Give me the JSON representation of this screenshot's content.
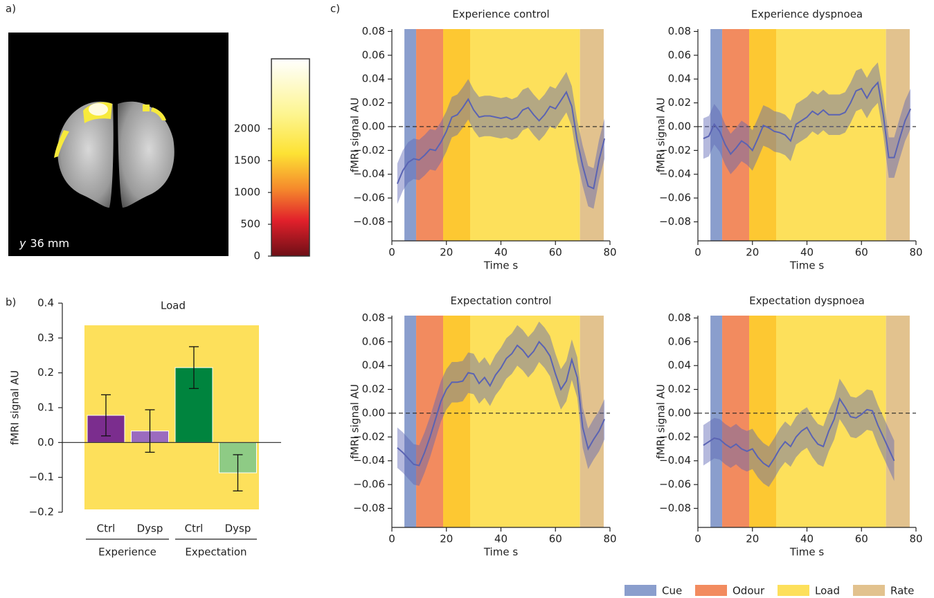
{
  "panel_labels": [
    "a)",
    "b)",
    "c)"
  ],
  "image": {
    "caption_var": "y",
    "caption": "36 mm",
    "colorbar": {
      "ylim": [
        0,
        3100
      ],
      "yticks": [
        0,
        500,
        1000,
        1500,
        2000
      ]
    }
  },
  "phases": {
    "regions": [
      {
        "range": [
          4.6,
          8.9
        ],
        "color": "#8a9ecd"
      },
      {
        "range": [
          8.9,
          18.8
        ],
        "color": "#f28b5f"
      },
      {
        "range": [
          18.8,
          28.7
        ],
        "color": "#fdc832"
      },
      {
        "range": [
          28.7,
          69
        ],
        "color": "#fde05b"
      },
      {
        "range": [
          69,
          77.7
        ],
        "color": "#e2c28e"
      }
    ],
    "legend": [
      {
        "name": "Cue",
        "color": "#8a9ecd"
      },
      {
        "name": "Odour",
        "color": "#f28b5f"
      },
      {
        "name": "Load",
        "color": "#fde05b"
      },
      {
        "name": "Rate",
        "color": "#e2c28e"
      }
    ]
  },
  "chart_data": [
    {
      "type": "bar",
      "title": "Load",
      "y_label": "fMRI signal AU",
      "categories": [
        "Ctrl",
        "Dysp",
        "Ctrl",
        "Dysp"
      ],
      "groups": [
        "Experience",
        "Expectation"
      ],
      "values": [
        0.078,
        0.033,
        0.215,
        -0.087
      ],
      "error": [
        0.059,
        0.061,
        0.06,
        0.052
      ],
      "colors": [
        "#7b2d8e",
        "#9b6bbf",
        "#00843e",
        "#8ecb85"
      ],
      "ylim": [
        -0.2,
        0.4
      ],
      "yticks": [
        0.4,
        0.3,
        0.2,
        0.1,
        {
          "value": 0,
          "label": "0.0"
        },
        {
          "value": -0.1,
          "label": "−0.1"
        },
        {
          "value": -0.2,
          "label": "−0.2"
        }
      ],
      "hline": 0
    },
    {
      "type": "line",
      "title": "Experience control",
      "x_label": "Time s",
      "y_label": "fMRI signal AU",
      "x": [
        2,
        4,
        6,
        8,
        10,
        12,
        14,
        16,
        18,
        20,
        22,
        24,
        26,
        28,
        30,
        32,
        34,
        36,
        38,
        40,
        42,
        44,
        46,
        48,
        50,
        52,
        54,
        56,
        58,
        60,
        62,
        64,
        66,
        68,
        70,
        72,
        74,
        76,
        78
      ],
      "series": [
        {
          "color": "#5a63b3",
          "error": 0.017,
          "values": [
            -0.048,
            -0.037,
            -0.03,
            -0.027,
            -0.028,
            -0.024,
            -0.019,
            -0.02,
            -0.013,
            -0.004,
            0.008,
            0.01,
            0.016,
            0.023,
            0.014,
            0.008,
            0.009,
            0.009,
            0.008,
            0.007,
            0.008,
            0.006,
            0.008,
            0.014,
            0.016,
            0.01,
            0.005,
            0.01,
            0.017,
            0.015,
            0.022,
            0.029,
            0.017,
            -0.012,
            -0.033,
            -0.05,
            -0.052,
            -0.028,
            -0.01
          ]
        }
      ],
      "xlim": [
        0,
        80
      ],
      "xticks": [
        0,
        20,
        40,
        60,
        80
      ],
      "ylim": [
        -0.096,
        0.082
      ],
      "yticks": [
        0.08,
        0.06,
        0.04,
        0.02,
        {
          "value": 0,
          "label": "0.00"
        },
        {
          "value": -0.02,
          "label": "−0.02"
        },
        {
          "value": -0.04,
          "label": "−0.04"
        },
        {
          "value": -0.06,
          "label": "−0.06"
        },
        {
          "value": -0.08,
          "label": "−0.08"
        }
      ],
      "hline": 0
    },
    {
      "type": "line",
      "title": "Experience dyspnoea",
      "x_label": "Time s",
      "y_label": "fMRI signal AU",
      "x": [
        2,
        4,
        6,
        8,
        10,
        12,
        14,
        16,
        18,
        20,
        22,
        24,
        26,
        28,
        30,
        32,
        34,
        36,
        38,
        40,
        42,
        44,
        46,
        48,
        50,
        52,
        54,
        56,
        58,
        60,
        62,
        64,
        66,
        68,
        70,
        72,
        74,
        76,
        78
      ],
      "series": [
        {
          "color": "#5a63b3",
          "error": 0.017,
          "values": [
            -0.01,
            -0.008,
            0.002,
            -0.004,
            -0.015,
            -0.023,
            -0.018,
            -0.012,
            -0.015,
            -0.02,
            -0.01,
            0.001,
            -0.001,
            -0.004,
            -0.005,
            -0.007,
            -0.012,
            0.002,
            0.005,
            0.008,
            0.013,
            0.01,
            0.014,
            0.01,
            0.01,
            0.01,
            0.012,
            0.02,
            0.03,
            0.032,
            0.024,
            0.032,
            0.037,
            0.01,
            -0.026,
            -0.026,
            -0.01,
            0.005,
            0.015
          ]
        }
      ],
      "xlim": [
        0,
        80
      ],
      "xticks": [
        0,
        20,
        40,
        60,
        80
      ],
      "ylim": [
        -0.096,
        0.082
      ],
      "yticks": [
        0.08,
        0.06,
        0.04,
        0.02,
        {
          "value": 0,
          "label": "0.00"
        },
        {
          "value": -0.02,
          "label": "−0.02"
        },
        {
          "value": -0.04,
          "label": "−0.04"
        },
        {
          "value": -0.06,
          "label": "−0.06"
        },
        {
          "value": -0.08,
          "label": "−0.08"
        }
      ],
      "hline": 0
    },
    {
      "type": "line",
      "title": "Expectation control",
      "x_label": "Time s",
      "y_label": "fMRI signal AU",
      "x": [
        2,
        4,
        6,
        8,
        10,
        12,
        14,
        16,
        18,
        20,
        22,
        24,
        26,
        28,
        30,
        32,
        34,
        36,
        38,
        40,
        42,
        44,
        46,
        48,
        50,
        52,
        54,
        56,
        58,
        60,
        62,
        64,
        66,
        68,
        70,
        72,
        74,
        76,
        78
      ],
      "series": [
        {
          "color": "#5a63b3",
          "error": 0.017,
          "values": [
            -0.029,
            -0.033,
            -0.038,
            -0.043,
            -0.044,
            -0.033,
            -0.02,
            -0.005,
            0.01,
            0.02,
            0.026,
            0.026,
            0.027,
            0.034,
            0.033,
            0.025,
            0.03,
            0.023,
            0.032,
            0.038,
            0.046,
            0.05,
            0.057,
            0.053,
            0.047,
            0.052,
            0.06,
            0.055,
            0.048,
            0.033,
            0.02,
            0.027,
            0.045,
            0.03,
            -0.012,
            -0.03,
            -0.022,
            -0.015,
            -0.005
          ]
        }
      ],
      "xlim": [
        0,
        80
      ],
      "xticks": [
        0,
        20,
        40,
        60,
        80
      ],
      "ylim": [
        -0.096,
        0.082
      ],
      "yticks": [
        0.08,
        0.06,
        0.04,
        0.02,
        {
          "value": 0,
          "label": "0.00"
        },
        {
          "value": -0.02,
          "label": "−0.02"
        },
        {
          "value": -0.04,
          "label": "−0.04"
        },
        {
          "value": -0.06,
          "label": "−0.06"
        },
        {
          "value": -0.08,
          "label": "−0.08"
        }
      ],
      "hline": 0
    },
    {
      "type": "line",
      "title": "Expectation dyspnoea",
      "x_label": "Time s",
      "y_label": "fMRI signal AU",
      "x": [
        2,
        4,
        6,
        8,
        10,
        12,
        14,
        16,
        18,
        20,
        22,
        24,
        26,
        28,
        30,
        32,
        34,
        36,
        38,
        40,
        42,
        44,
        46,
        48,
        50,
        52,
        54,
        56,
        58,
        60,
        62,
        64,
        66,
        68,
        70,
        72,
        74,
        76,
        78
      ],
      "series": [
        {
          "color": "#5a63b3",
          "error": 0.017,
          "values": [
            -0.027,
            -0.024,
            -0.021,
            -0.022,
            -0.026,
            -0.029,
            -0.026,
            -0.03,
            -0.032,
            -0.03,
            -0.037,
            -0.042,
            -0.045,
            -0.038,
            -0.03,
            -0.024,
            -0.028,
            -0.02,
            -0.015,
            -0.012,
            -0.02,
            -0.026,
            -0.028,
            -0.015,
            -0.005,
            0.012,
            0.005,
            -0.003,
            -0.004,
            -0.001,
            0.003,
            0.002,
            -0.01,
            -0.02,
            -0.03,
            -0.04,
            null,
            null,
            null
          ]
        }
      ],
      "xlim": [
        0,
        80
      ],
      "xticks": [
        0,
        20,
        40,
        60,
        80
      ],
      "ylim": [
        -0.096,
        0.082
      ],
      "yticks": [
        0.08,
        0.06,
        0.04,
        0.02,
        {
          "value": 0,
          "label": "0.00"
        },
        {
          "value": -0.02,
          "label": "−0.02"
        },
        {
          "value": -0.04,
          "label": "−0.04"
        },
        {
          "value": -0.06,
          "label": "−0.06"
        },
        {
          "value": -0.08,
          "label": "−0.08"
        }
      ],
      "hline": 0
    }
  ]
}
